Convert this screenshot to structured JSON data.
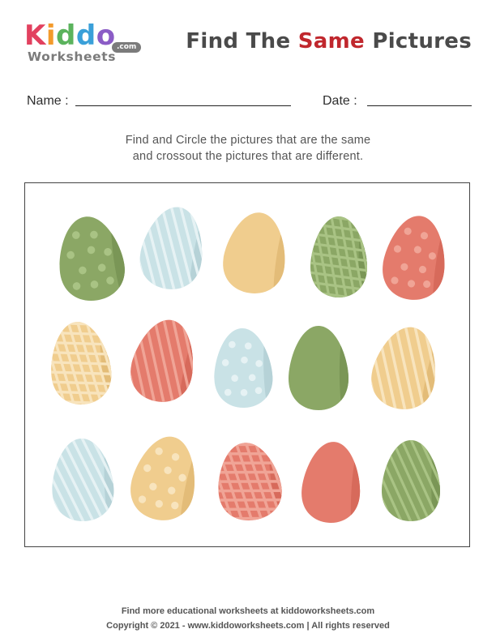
{
  "logo": {
    "brand_letters": [
      {
        "ch": "K",
        "color": "#e2415f"
      },
      {
        "ch": "i",
        "color": "#f39a2b"
      },
      {
        "ch": "d",
        "color": "#5bb35d"
      },
      {
        "ch": "d",
        "color": "#3aa0d9"
      },
      {
        "ch": "o",
        "color": "#8b5cc6"
      }
    ],
    "sub": "Worksheets",
    "com": ".com"
  },
  "header": {
    "title_prefix": "Find The ",
    "title_accent": "Same",
    "title_suffix": " Pictures",
    "accent_color": "#c0272d"
  },
  "form": {
    "name_label": "Name :",
    "date_label": "Date :"
  },
  "instructions": {
    "line1": "Find and Circle the pictures that are the same",
    "line2": "and crossout the pictures that are different."
  },
  "eggs": [
    {
      "color": "green",
      "pattern": "dots"
    },
    {
      "color": "blue",
      "pattern": "stripes"
    },
    {
      "color": "yellow",
      "pattern": "plain"
    },
    {
      "color": "green",
      "pattern": "grid"
    },
    {
      "color": "red",
      "pattern": "dots"
    },
    {
      "color": "yellow",
      "pattern": "grid"
    },
    {
      "color": "red",
      "pattern": "stripes"
    },
    {
      "color": "blue",
      "pattern": "dots"
    },
    {
      "color": "green",
      "pattern": "plain"
    },
    {
      "color": "yellow",
      "pattern": "stripes"
    },
    {
      "color": "blue",
      "pattern": "stripes"
    },
    {
      "color": "yellow",
      "pattern": "dots"
    },
    {
      "color": "red",
      "pattern": "grid"
    },
    {
      "color": "red",
      "pattern": "plain"
    },
    {
      "color": "green",
      "pattern": "stripes"
    }
  ],
  "palette": {
    "green": {
      "fill": "#8ba765",
      "shade": "#7a9656",
      "light": "#a9c384"
    },
    "blue": {
      "fill": "#c9e2e6",
      "shade": "#b6d2d7",
      "light": "#e6f2f4"
    },
    "yellow": {
      "fill": "#f0cd8e",
      "shade": "#e3bc78",
      "light": "#f8e4bd"
    },
    "red": {
      "fill": "#e47b6c",
      "shade": "#d76a5b",
      "light": "#f0a496"
    }
  },
  "footer": {
    "line1": "Find more educational worksheets at kiddoworksheets.com",
    "line2": "Copyright © 2021 - www.kiddoworksheets.com  |  All rights reserved"
  }
}
